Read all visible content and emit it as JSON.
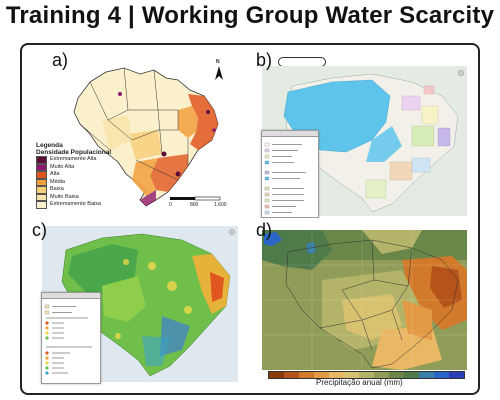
{
  "title": "Training 4 | Working Group Water Scarcity",
  "panels": {
    "a": {
      "label": "a)",
      "legend_title": "Legenda",
      "legend_subtitle": "Densidade Populacional",
      "legend_items": [
        {
          "label": "Extremamente Alta",
          "color": "#5a0f3a"
        },
        {
          "label": "Muito Alta",
          "color": "#8e1a6e"
        },
        {
          "label": "Alta",
          "color": "#e0561f"
        },
        {
          "label": "Média",
          "color": "#f2a03c"
        },
        {
          "label": "Baixa",
          "color": "#f6cf7a"
        },
        {
          "label": "Muito Baixa",
          "color": "#f8e4ac"
        },
        {
          "label": "Extremamente Baixa",
          "color": "#fbf0cc"
        }
      ],
      "north": "N",
      "scale": [
        "0",
        "800",
        "1.600"
      ]
    },
    "b": {
      "label": "b)"
    },
    "c": {
      "label": "c)"
    },
    "d": {
      "label": "d)",
      "colorbar_title": "Precipitação anual (mm)",
      "colorbar_colors": [
        "#8a3a0a",
        "#b5541a",
        "#d27a2c",
        "#e39a45",
        "#eab865",
        "#d8c270",
        "#b3b46a",
        "#8f9d58",
        "#6a8648",
        "#4f7a4a",
        "#3a7fa8",
        "#2a65c8",
        "#2a3fb8"
      ]
    }
  },
  "colors": {
    "accent_blue": "#5fc4ec",
    "map_land": "#f6ebc4",
    "map_green": "#6fbf4a",
    "map_brown": "#8c7a2c"
  }
}
